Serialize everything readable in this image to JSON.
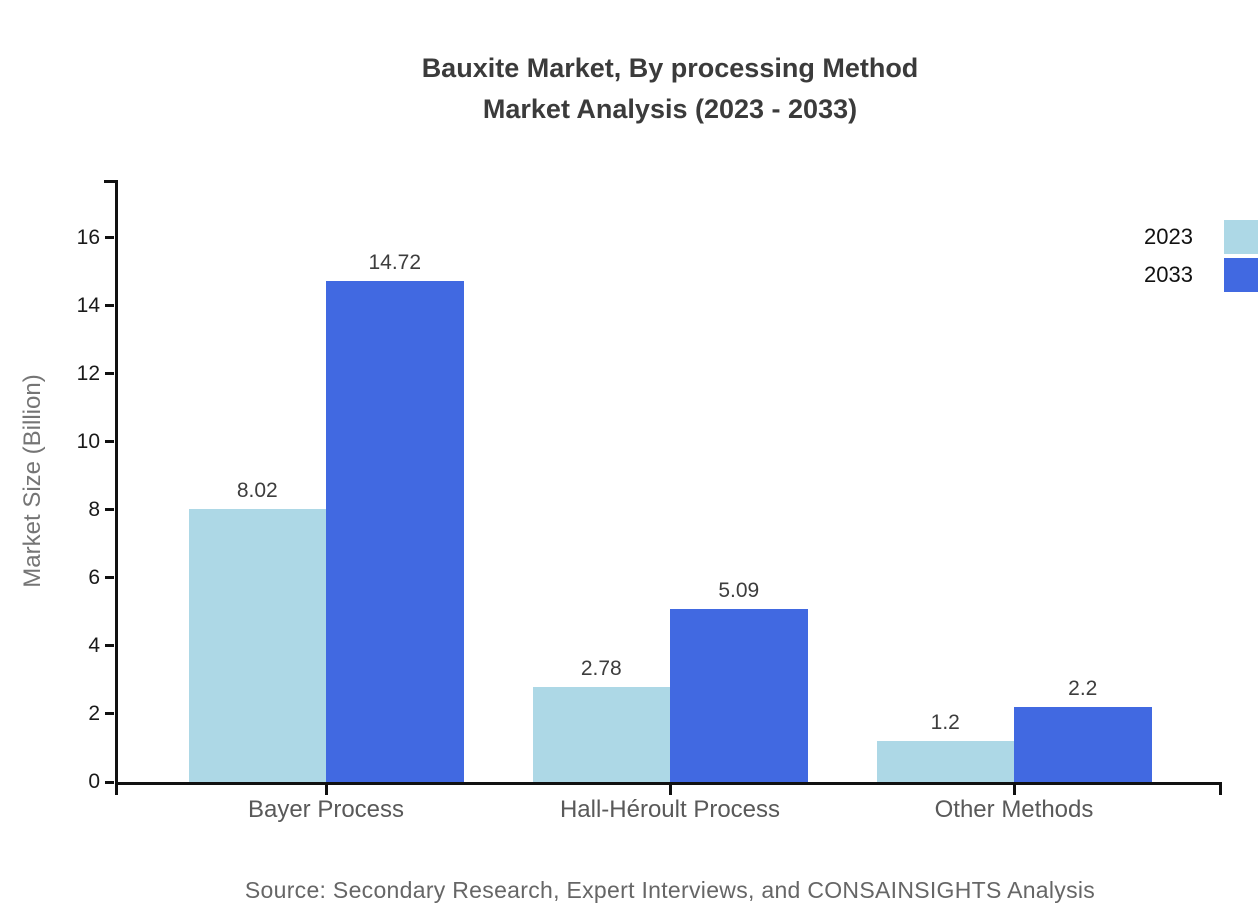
{
  "header": {
    "title_line1": "Bauxite Market, By processing Method",
    "title_line2": "Market Analysis (2023 - 2033)"
  },
  "chart_data": {
    "type": "bar",
    "title": "Bauxite Market, By processing Method Market Analysis (2023 - 2033)",
    "categories": [
      "Bayer Process",
      "Hall-Héroult Process",
      "Other Methods"
    ],
    "series": [
      {
        "name": "2023",
        "color": "#ADD8E6",
        "values": [
          8.02,
          2.78,
          1.2
        ]
      },
      {
        "name": "2033",
        "color": "#4169E1",
        "values": [
          14.72,
          5.09,
          2.2
        ]
      }
    ],
    "xlabel": "",
    "ylabel": "Market Size (Billion)",
    "ylim": [
      0,
      17.7
    ],
    "yticks": [
      0,
      2,
      4,
      6,
      8,
      10,
      12,
      14,
      16
    ],
    "grid": false,
    "value_labels": true,
    "legend_position": "top-right"
  },
  "footer": {
    "source": "Source: Secondary Research, Expert Interviews, and CONSAINSIGHTS Analysis"
  },
  "colors": {
    "series_2023": "#ADD8E6",
    "series_2033": "#4169E1",
    "axis": "#111111",
    "title_text": "#3b3b3b",
    "tick_text": "#1a1a1a",
    "category_text": "#595959",
    "value_text": "#3d3d3d",
    "ylabel_text": "#757575",
    "source_text": "#666666",
    "background": "#ffffff"
  }
}
